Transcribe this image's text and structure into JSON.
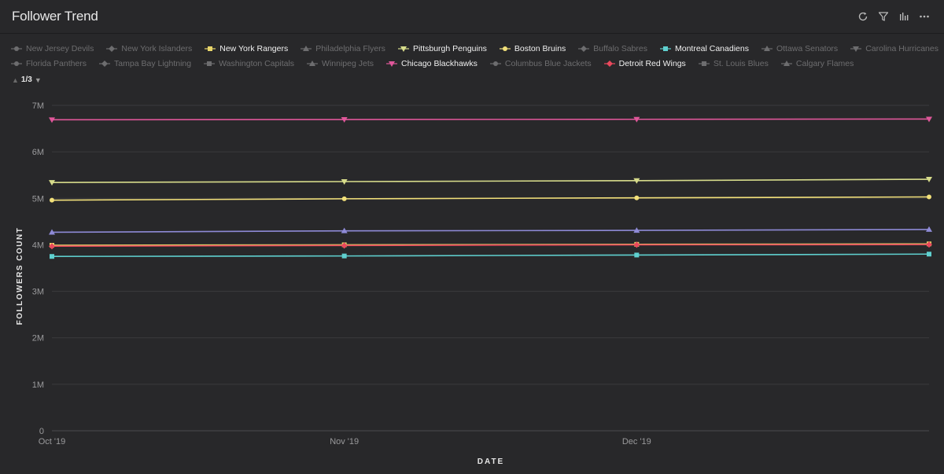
{
  "header": {
    "title": "Follower Trend"
  },
  "toolbar": [
    {
      "name": "refresh-icon"
    },
    {
      "name": "filter-icon"
    },
    {
      "name": "bar-chart-icon"
    },
    {
      "name": "more-icon"
    }
  ],
  "pager": {
    "text": "1/3"
  },
  "legend": [
    {
      "label": "New Jersey Devils",
      "on": false,
      "shape": "circle",
      "color": "#6d6d6f"
    },
    {
      "label": "New York Islanders",
      "on": false,
      "shape": "diamond",
      "color": "#6d6d6f"
    },
    {
      "label": "New York Rangers",
      "on": true,
      "shape": "square",
      "color": "#e8d56a"
    },
    {
      "label": "Philadelphia Flyers",
      "on": false,
      "shape": "triangle",
      "color": "#6d6d6f"
    },
    {
      "label": "Pittsburgh Penguins",
      "on": true,
      "shape": "triangle-down",
      "color": "#d7dc8b"
    },
    {
      "label": "Boston Bruins",
      "on": true,
      "shape": "circle",
      "color": "#f2e07a"
    },
    {
      "label": "Buffalo Sabres",
      "on": false,
      "shape": "diamond",
      "color": "#6d6d6f"
    },
    {
      "label": "Montreal Canadiens",
      "on": true,
      "shape": "square",
      "color": "#5fd0cf"
    },
    {
      "label": "Ottawa Senators",
      "on": false,
      "shape": "triangle",
      "color": "#6d6d6f"
    },
    {
      "label": "Carolina Hurricanes",
      "on": false,
      "shape": "triangle-down",
      "color": "#6d6d6f"
    },
    {
      "label": "Florida Panthers",
      "on": false,
      "shape": "circle",
      "color": "#6d6d6f"
    },
    {
      "label": "Tampa Bay Lightning",
      "on": false,
      "shape": "diamond",
      "color": "#6d6d6f"
    },
    {
      "label": "Washington Capitals",
      "on": false,
      "shape": "square",
      "color": "#6d6d6f"
    },
    {
      "label": "Winnipeg Jets",
      "on": false,
      "shape": "triangle",
      "color": "#6d6d6f"
    },
    {
      "label": "Chicago Blackhawks",
      "on": true,
      "shape": "triangle-down",
      "color": "#e0579a"
    },
    {
      "label": "Columbus Blue Jackets",
      "on": false,
      "shape": "circle",
      "color": "#6d6d6f"
    },
    {
      "label": "Detroit Red Wings",
      "on": true,
      "shape": "diamond",
      "color": "#e9485c"
    },
    {
      "label": "St. Louis Blues",
      "on": false,
      "shape": "square",
      "color": "#6d6d6f"
    },
    {
      "label": "Calgary Flames",
      "on": false,
      "shape": "triangle",
      "color": "#6d6d6f"
    }
  ],
  "chart_data": {
    "type": "line",
    "title": "Follower Trend",
    "xlabel": "DATE",
    "ylabel": "FOLLOWERS COUNT",
    "x": [
      "Oct '19",
      "Nov '19",
      "Dec '19",
      ""
    ],
    "ylim": [
      0,
      7000000
    ],
    "yticks": [
      0,
      1000000,
      2000000,
      3000000,
      4000000,
      5000000,
      6000000,
      7000000
    ],
    "ytick_labels": [
      "0",
      "1M",
      "2M",
      "3M",
      "4M",
      "5M",
      "6M",
      "7M"
    ],
    "grid": true,
    "legend_position": "top",
    "series": [
      {
        "name": "Chicago Blackhawks",
        "color": "#e0579a",
        "marker": "triangle-down",
        "values": [
          6690000,
          6695000,
          6700000,
          6705000
        ]
      },
      {
        "name": "Pittsburgh Penguins",
        "color": "#d7dc8b",
        "marker": "triangle-down",
        "values": [
          5340000,
          5360000,
          5380000,
          5410000
        ]
      },
      {
        "name": "Boston Bruins",
        "color": "#f2e07a",
        "marker": "circle",
        "values": [
          4960000,
          4990000,
          5010000,
          5030000
        ]
      },
      {
        "name": "",
        "color": "#8e8ad6",
        "marker": "triangle",
        "values": [
          4270000,
          4300000,
          4310000,
          4330000
        ]
      },
      {
        "name": "New York Rangers",
        "color": "#e8d56a",
        "marker": "square",
        "values": [
          3990000,
          4000000,
          4010000,
          4020000
        ]
      },
      {
        "name": "Detroit Red Wings",
        "color": "#e9485c",
        "marker": "diamond",
        "values": [
          3970000,
          3985000,
          4000000,
          4005000
        ]
      },
      {
        "name": "Montreal Canadiens",
        "color": "#5fd0cf",
        "marker": "square",
        "values": [
          3750000,
          3760000,
          3780000,
          3800000
        ]
      }
    ]
  }
}
